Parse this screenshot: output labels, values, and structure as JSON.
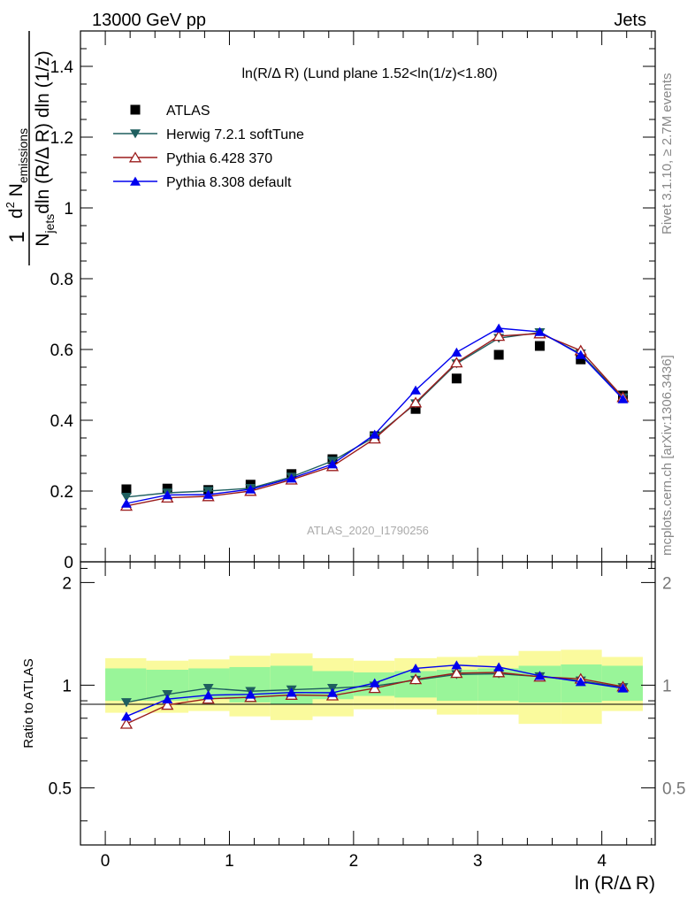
{
  "header": {
    "left": "13000 GeV pp",
    "right": "Jets"
  },
  "side_labels": {
    "rivet": "Rivet 3.1.10, ≥ 2.7M events",
    "mcplots": "mcplots.cern.ch [arXiv:1306.3436]"
  },
  "watermark": "ATLAS_2020_I1790256",
  "colors": {
    "atlas": "#000000",
    "herwig": "#1f5f5f",
    "pythia6": "#9b1c1c",
    "pythia8": "#0000ee",
    "band_inner": "#99f599",
    "band_outer": "#fafa9d"
  },
  "chart_data": [
    {
      "type": "line",
      "title": "ln(R/Δ R) (Lund plane 1.52<ln(1/z)<1.80)",
      "ylabel": {
        "prefix": "1",
        "denominator": "N",
        "denominator_sub": "jets",
        "denominator_rest": "dln (R/Δ R) dln (1/z)",
        "numerator_d": "d",
        "numerator_sup": "2",
        "numerator_N": "N",
        "numerator_sub": "emissions"
      },
      "xlabel": "",
      "xlim": [
        -0.2,
        4.43
      ],
      "ylim": [
        0,
        1.5
      ],
      "y_ticks": [
        "0",
        "0.2",
        "0.4",
        "0.6",
        "0.8",
        "1",
        "1.2",
        "1.4"
      ],
      "legend_position": "top-left",
      "x": [
        0.17,
        0.5,
        0.83,
        1.17,
        1.5,
        1.83,
        2.17,
        2.5,
        2.83,
        3.17,
        3.5,
        3.83,
        4.17
      ],
      "series": [
        {
          "name": "ATLAS",
          "marker": "square",
          "values": [
            0.205,
            0.207,
            0.203,
            0.218,
            0.248,
            0.29,
            0.355,
            0.432,
            0.518,
            0.585,
            0.61,
            0.572,
            0.47
          ]
        },
        {
          "name": "Herwig 7.2.1 softTune",
          "marker": "triangle-down",
          "values": [
            0.183,
            0.195,
            0.2,
            0.208,
            0.24,
            0.285,
            0.353,
            0.447,
            0.56,
            0.632,
            0.648,
            0.588,
            0.464
          ]
        },
        {
          "name": "Pythia 6.428 370",
          "marker": "triangle-up-open",
          "values": [
            0.158,
            0.181,
            0.185,
            0.2,
            0.232,
            0.27,
            0.348,
            0.45,
            0.563,
            0.638,
            0.645,
            0.597,
            0.465
          ]
        },
        {
          "name": "Pythia 8.308 default",
          "marker": "triangle-up",
          "values": [
            0.165,
            0.189,
            0.19,
            0.205,
            0.236,
            0.276,
            0.36,
            0.485,
            0.592,
            0.66,
            0.65,
            0.585,
            0.46
          ]
        }
      ]
    },
    {
      "type": "line",
      "title": "",
      "ylabel": "Ratio to ATLAS",
      "xlabel": "ln (R/Δ R)",
      "xlim": [
        -0.2,
        4.43
      ],
      "ylim": [
        0.34,
        2.3
      ],
      "y_ticks": [
        "0.5",
        "1",
        "2"
      ],
      "x_ticks": [
        "0",
        "1",
        "2",
        "3",
        "4"
      ],
      "bin_edges": [
        0.0,
        0.33,
        0.67,
        1.0,
        1.33,
        1.67,
        2.0,
        2.33,
        2.67,
        3.0,
        3.33,
        3.67,
        4.0,
        4.33
      ],
      "band_inner": [
        [
          0.9,
          1.12
        ],
        [
          0.9,
          1.11
        ],
        [
          0.91,
          1.12
        ],
        [
          0.89,
          1.13
        ],
        [
          0.88,
          1.14
        ],
        [
          0.91,
          1.1
        ],
        [
          0.93,
          1.09
        ],
        [
          0.92,
          1.1
        ],
        [
          0.9,
          1.11
        ],
        [
          0.9,
          1.12
        ],
        [
          0.89,
          1.14
        ],
        [
          0.89,
          1.15
        ],
        [
          0.9,
          1.14
        ]
      ],
      "band_outer": [
        [
          0.83,
          1.2
        ],
        [
          0.83,
          1.18
        ],
        [
          0.84,
          1.19
        ],
        [
          0.81,
          1.22
        ],
        [
          0.79,
          1.24
        ],
        [
          0.81,
          1.2
        ],
        [
          0.85,
          1.18
        ],
        [
          0.85,
          1.2
        ],
        [
          0.82,
          1.21
        ],
        [
          0.82,
          1.22
        ],
        [
          0.77,
          1.26
        ],
        [
          0.77,
          1.27
        ],
        [
          0.84,
          1.21
        ]
      ],
      "x": [
        0.17,
        0.5,
        0.83,
        1.17,
        1.5,
        1.83,
        2.17,
        2.5,
        2.83,
        3.17,
        3.5,
        3.83,
        4.17
      ],
      "series": [
        {
          "name": "Herwig 7.2.1 softTune",
          "marker": "triangle-down",
          "values": [
            0.89,
            0.94,
            0.98,
            0.96,
            0.97,
            0.98,
            0.995,
            1.035,
            1.075,
            1.08,
            1.06,
            1.03,
            0.985
          ]
        },
        {
          "name": "Pythia 6.428 370",
          "marker": "triangle-up-open",
          "values": [
            0.77,
            0.875,
            0.912,
            0.922,
            0.936,
            0.932,
            0.98,
            1.04,
            1.085,
            1.09,
            1.058,
            1.044,
            0.99
          ]
        },
        {
          "name": "Pythia 8.308 default",
          "marker": "triangle-up",
          "values": [
            0.81,
            0.91,
            0.935,
            0.94,
            0.952,
            0.95,
            1.015,
            1.12,
            1.145,
            1.13,
            1.066,
            1.023,
            0.98
          ]
        }
      ]
    }
  ]
}
